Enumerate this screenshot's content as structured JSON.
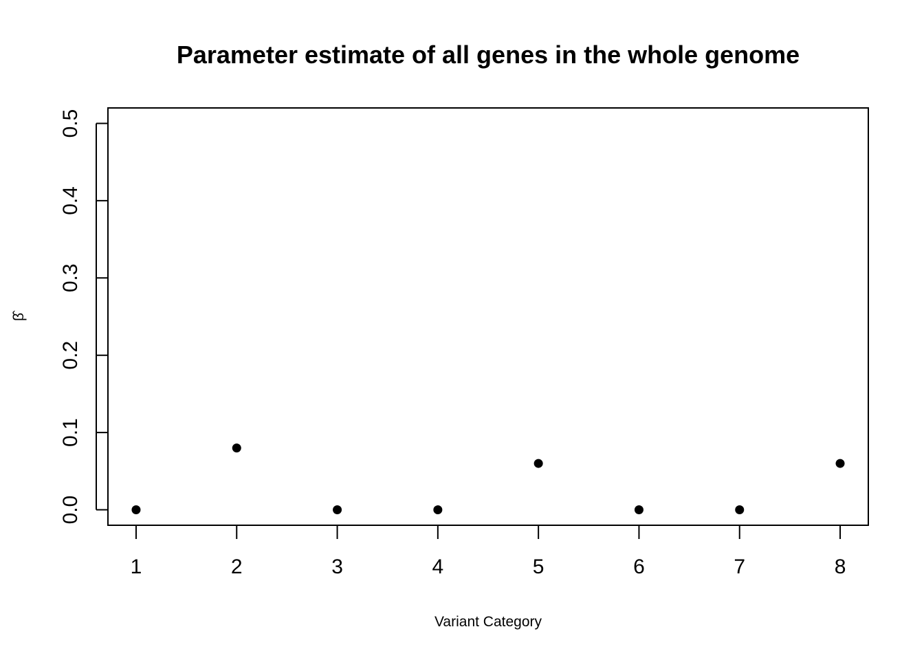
{
  "chart_data": {
    "type": "scatter",
    "title": "Parameter estimate of all genes in the whole genome",
    "xlabel": "Variant Category",
    "ylabel": "β̂",
    "x": [
      1,
      2,
      3,
      4,
      5,
      6,
      7,
      8
    ],
    "y": [
      0.0,
      0.08,
      0.0,
      0.0,
      0.06,
      0.0,
      0.0,
      0.06
    ],
    "x_ticks": [
      "1",
      "2",
      "3",
      "4",
      "5",
      "6",
      "7",
      "8"
    ],
    "y_ticks": [
      "0.0",
      "0.1",
      "0.2",
      "0.3",
      "0.4",
      "0.5"
    ],
    "xlim": [
      0.72,
      8.28
    ],
    "ylim": [
      -0.02,
      0.52
    ],
    "grid": false,
    "legend": "none",
    "marker_color": "#000000"
  }
}
